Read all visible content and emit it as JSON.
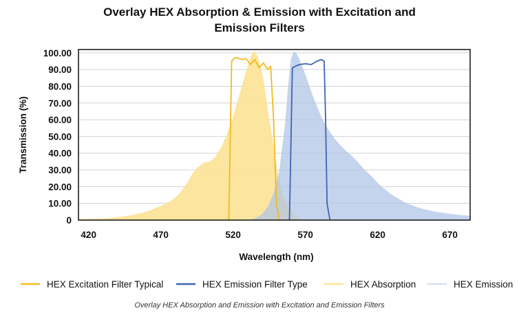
{
  "chart_data": {
    "type": "area",
    "title_lines": [
      "Overlay HEX Absorption & Emission with Excitation and",
      "Emission Filters"
    ],
    "xlabel": "Wavelength (nm)",
    "ylabel": "Transmission (%)",
    "xlim": [
      413,
      684
    ],
    "ylim": [
      0,
      102
    ],
    "x_ticks": [
      420,
      470,
      520,
      570,
      620,
      670
    ],
    "x_tick_labels": [
      "420",
      "470",
      "520",
      "570",
      "620",
      "670"
    ],
    "y_ticks": [
      0,
      10,
      20,
      30,
      40,
      50,
      60,
      70,
      80,
      90,
      100
    ],
    "y_tick_labels": [
      "0",
      "10.00",
      "20.00",
      "30.00",
      "40.00",
      "50.00",
      "60.00",
      "70.00",
      "80.00",
      "90.00",
      "100.00"
    ],
    "grid": true,
    "legend_position": "bottom",
    "series": [
      {
        "name": "HEX Absorption",
        "kind": "area",
        "color": "#fbe49a",
        "x": [
          413,
          430,
          440,
          450,
          460,
          470,
          476,
          482,
          488,
          492,
          496,
          500,
          504,
          508,
          512,
          516,
          520,
          524,
          528,
          531,
          533,
          535,
          537,
          539,
          541,
          543,
          545,
          548,
          551,
          554,
          558,
          562,
          566,
          570
        ],
        "y": [
          0.5,
          1,
          1.8,
          3,
          5,
          8.5,
          11,
          15,
          22,
          28,
          32,
          34.5,
          35,
          38,
          44,
          52,
          62,
          74,
          86,
          95,
          99.5,
          101,
          98,
          92,
          84,
          72,
          60,
          45,
          28,
          16,
          8,
          3,
          1,
          0
        ]
      },
      {
        "name": "HEX Emission",
        "kind": "area",
        "color": "#aec3e6",
        "x": [
          532,
          536,
          540,
          544,
          548,
          552,
          556,
          558,
          560,
          562,
          564,
          566,
          570,
          574,
          578,
          582,
          586,
          590,
          594,
          598,
          602,
          606,
          610,
          616,
          622,
          630,
          640,
          650,
          660,
          672,
          684
        ],
        "y": [
          0,
          1.5,
          3.5,
          8,
          16,
          30,
          58,
          80,
          96,
          101,
          99.5,
          96,
          87,
          77,
          68,
          60,
          54,
          49,
          45,
          41.5,
          38.5,
          35,
          31,
          26,
          20.5,
          15,
          10,
          7,
          5,
          3.5,
          2.5
        ]
      },
      {
        "name": "HEX Excitation Filter Typical",
        "kind": "line",
        "color": "#f2bb1d",
        "x": [
          517,
          519,
          521,
          523,
          526,
          529,
          532,
          535,
          538,
          541,
          544,
          546,
          548,
          550,
          552
        ],
        "y": [
          0,
          95,
          97,
          97,
          96,
          96.5,
          93,
          96,
          91,
          94,
          90,
          92,
          60,
          10,
          0
        ]
      },
      {
        "name": "HEX Emission Filter Type",
        "kind": "line",
        "color": "#3f63b0",
        "x": [
          559,
          561,
          563,
          566,
          570,
          574,
          578,
          581,
          583,
          584,
          585,
          587
        ],
        "y": [
          0,
          91,
          92,
          93,
          93.5,
          93,
          95,
          96,
          95,
          60,
          10,
          0
        ]
      }
    ],
    "legend": [
      {
        "label": "HEX Excitation Filter Typical",
        "color": "#f2bb1d"
      },
      {
        "label": "HEX Emission Filter Type",
        "color": "#3f63b0"
      },
      {
        "label": "HEX Absorption",
        "color": "#fbe49a"
      },
      {
        "label": "HEX Emission",
        "color": "#d6e0f2"
      }
    ],
    "caption": "Overlay HEX Absorption and Emission with Excitation and Emission Filters"
  }
}
